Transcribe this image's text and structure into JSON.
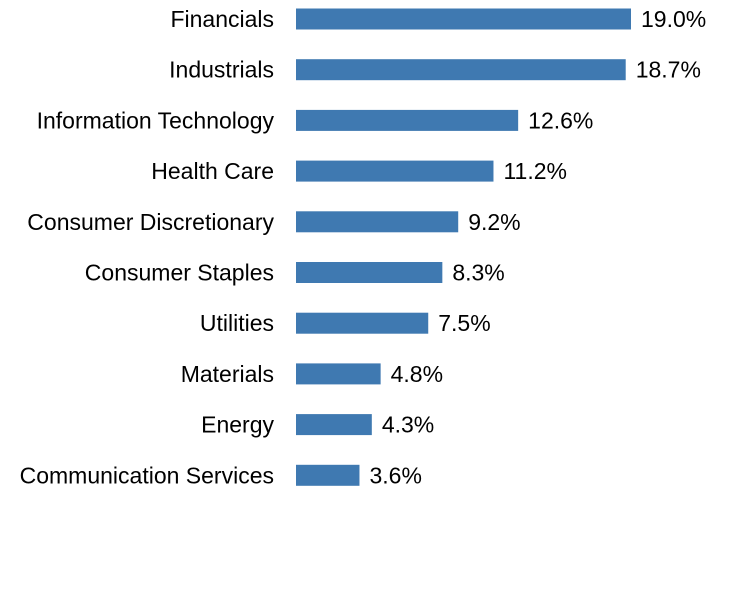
{
  "chart_data": {
    "type": "bar",
    "orientation": "horizontal",
    "title": "",
    "xlabel": "",
    "ylabel": "",
    "categories": [
      "Financials",
      "Industrials",
      "Information Technology",
      "Health Care",
      "Consumer Discretionary",
      "Consumer Staples",
      "Utilities",
      "Materials",
      "Energy",
      "Communication Services"
    ],
    "values": [
      19.0,
      18.7,
      12.6,
      11.2,
      9.2,
      8.3,
      7.5,
      4.8,
      4.3,
      3.6
    ],
    "value_labels": [
      "19.0%",
      "18.7%",
      "12.6%",
      "11.2%",
      "9.2%",
      "8.3%",
      "7.5%",
      "4.8%",
      "4.3%",
      "3.6%"
    ],
    "xlim": [
      0,
      19.0
    ],
    "bar_color": "#3f79b1",
    "grid": false,
    "legend": "none"
  }
}
